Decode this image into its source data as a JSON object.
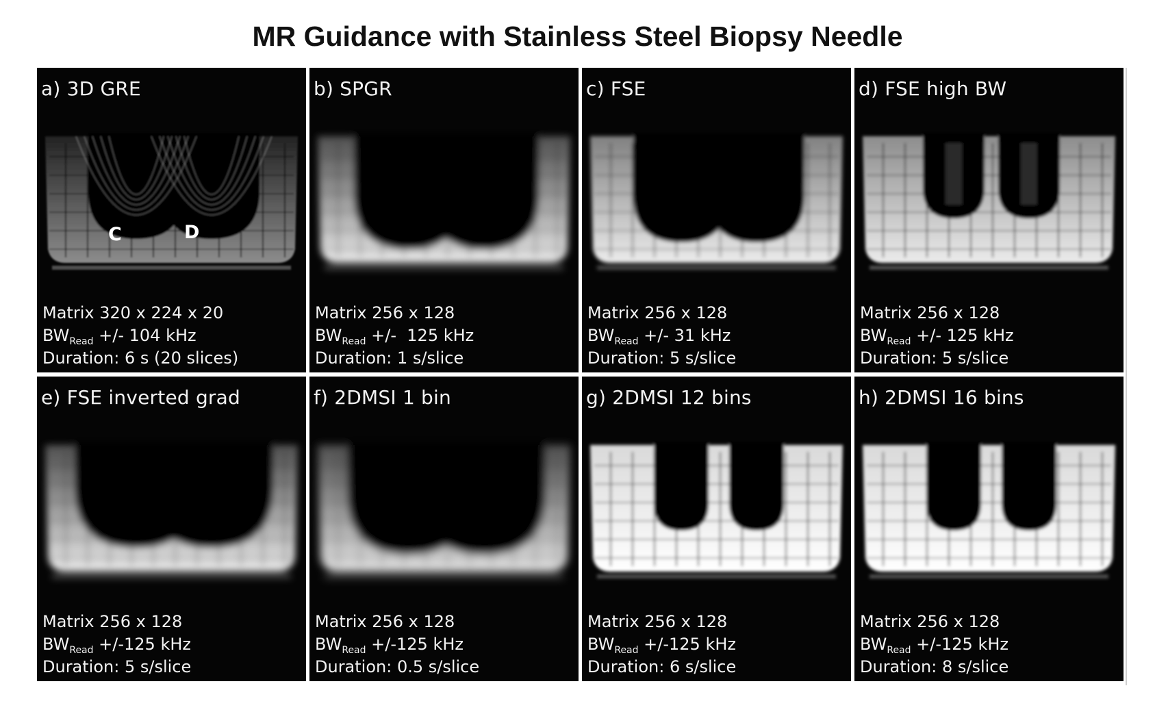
{
  "figure": {
    "title": "MR Guidance with Stainless Steel Biopsy Needle"
  },
  "panels": [
    {
      "label": "a) 3D GRE",
      "matrix": "Matrix 320 x 224 x 20",
      "bw_prefix": "BW",
      "bw_sub": "Read",
      "bw_value": " +/- 104 kHz",
      "duration": "Duration: 6 s (20 slices)",
      "markers": [
        "C",
        "D"
      ]
    },
    {
      "label": "b) SPGR",
      "matrix": "Matrix 256 x 128",
      "bw_prefix": "BW",
      "bw_sub": "Read",
      "bw_value": " +/-  125 kHz",
      "duration": "Duration: 1 s/slice"
    },
    {
      "label": "c) FSE",
      "matrix": "Matrix 256 x 128",
      "bw_prefix": "BW",
      "bw_sub": "Read",
      "bw_value": " +/- 31 kHz",
      "duration": "Duration: 5 s/slice"
    },
    {
      "label": "d) FSE high BW",
      "matrix": "Matrix 256 x 128",
      "bw_prefix": "BW",
      "bw_sub": "Read",
      "bw_value": " +/- 125 kHz",
      "duration": "Duration: 5 s/slice"
    },
    {
      "label": "e) FSE inverted grad",
      "matrix": "Matrix 256 x 128",
      "bw_prefix": "BW",
      "bw_sub": "Read",
      "bw_value": " +/-125 kHz",
      "duration": "Duration: 5 s/slice"
    },
    {
      "label": "f) 2DMSI 1 bin",
      "matrix": "Matrix 256 x 128",
      "bw_prefix": "BW",
      "bw_sub": "Read",
      "bw_value": " +/-125 kHz",
      "duration": "Duration: 0.5 s/slice"
    },
    {
      "label": "g) 2DMSI 12 bins",
      "matrix": "Matrix 256 x 128",
      "bw_prefix": "BW",
      "bw_sub": "Read",
      "bw_value": " +/-125 kHz",
      "duration": "Duration: 6 s/slice"
    },
    {
      "label": "h) 2DMSI 16 bins",
      "matrix": "Matrix 256 x 128",
      "bw_prefix": "BW",
      "bw_sub": "Read",
      "bw_value": " +/-125 kHz",
      "duration": "Duration: 8 s/slice"
    }
  ]
}
